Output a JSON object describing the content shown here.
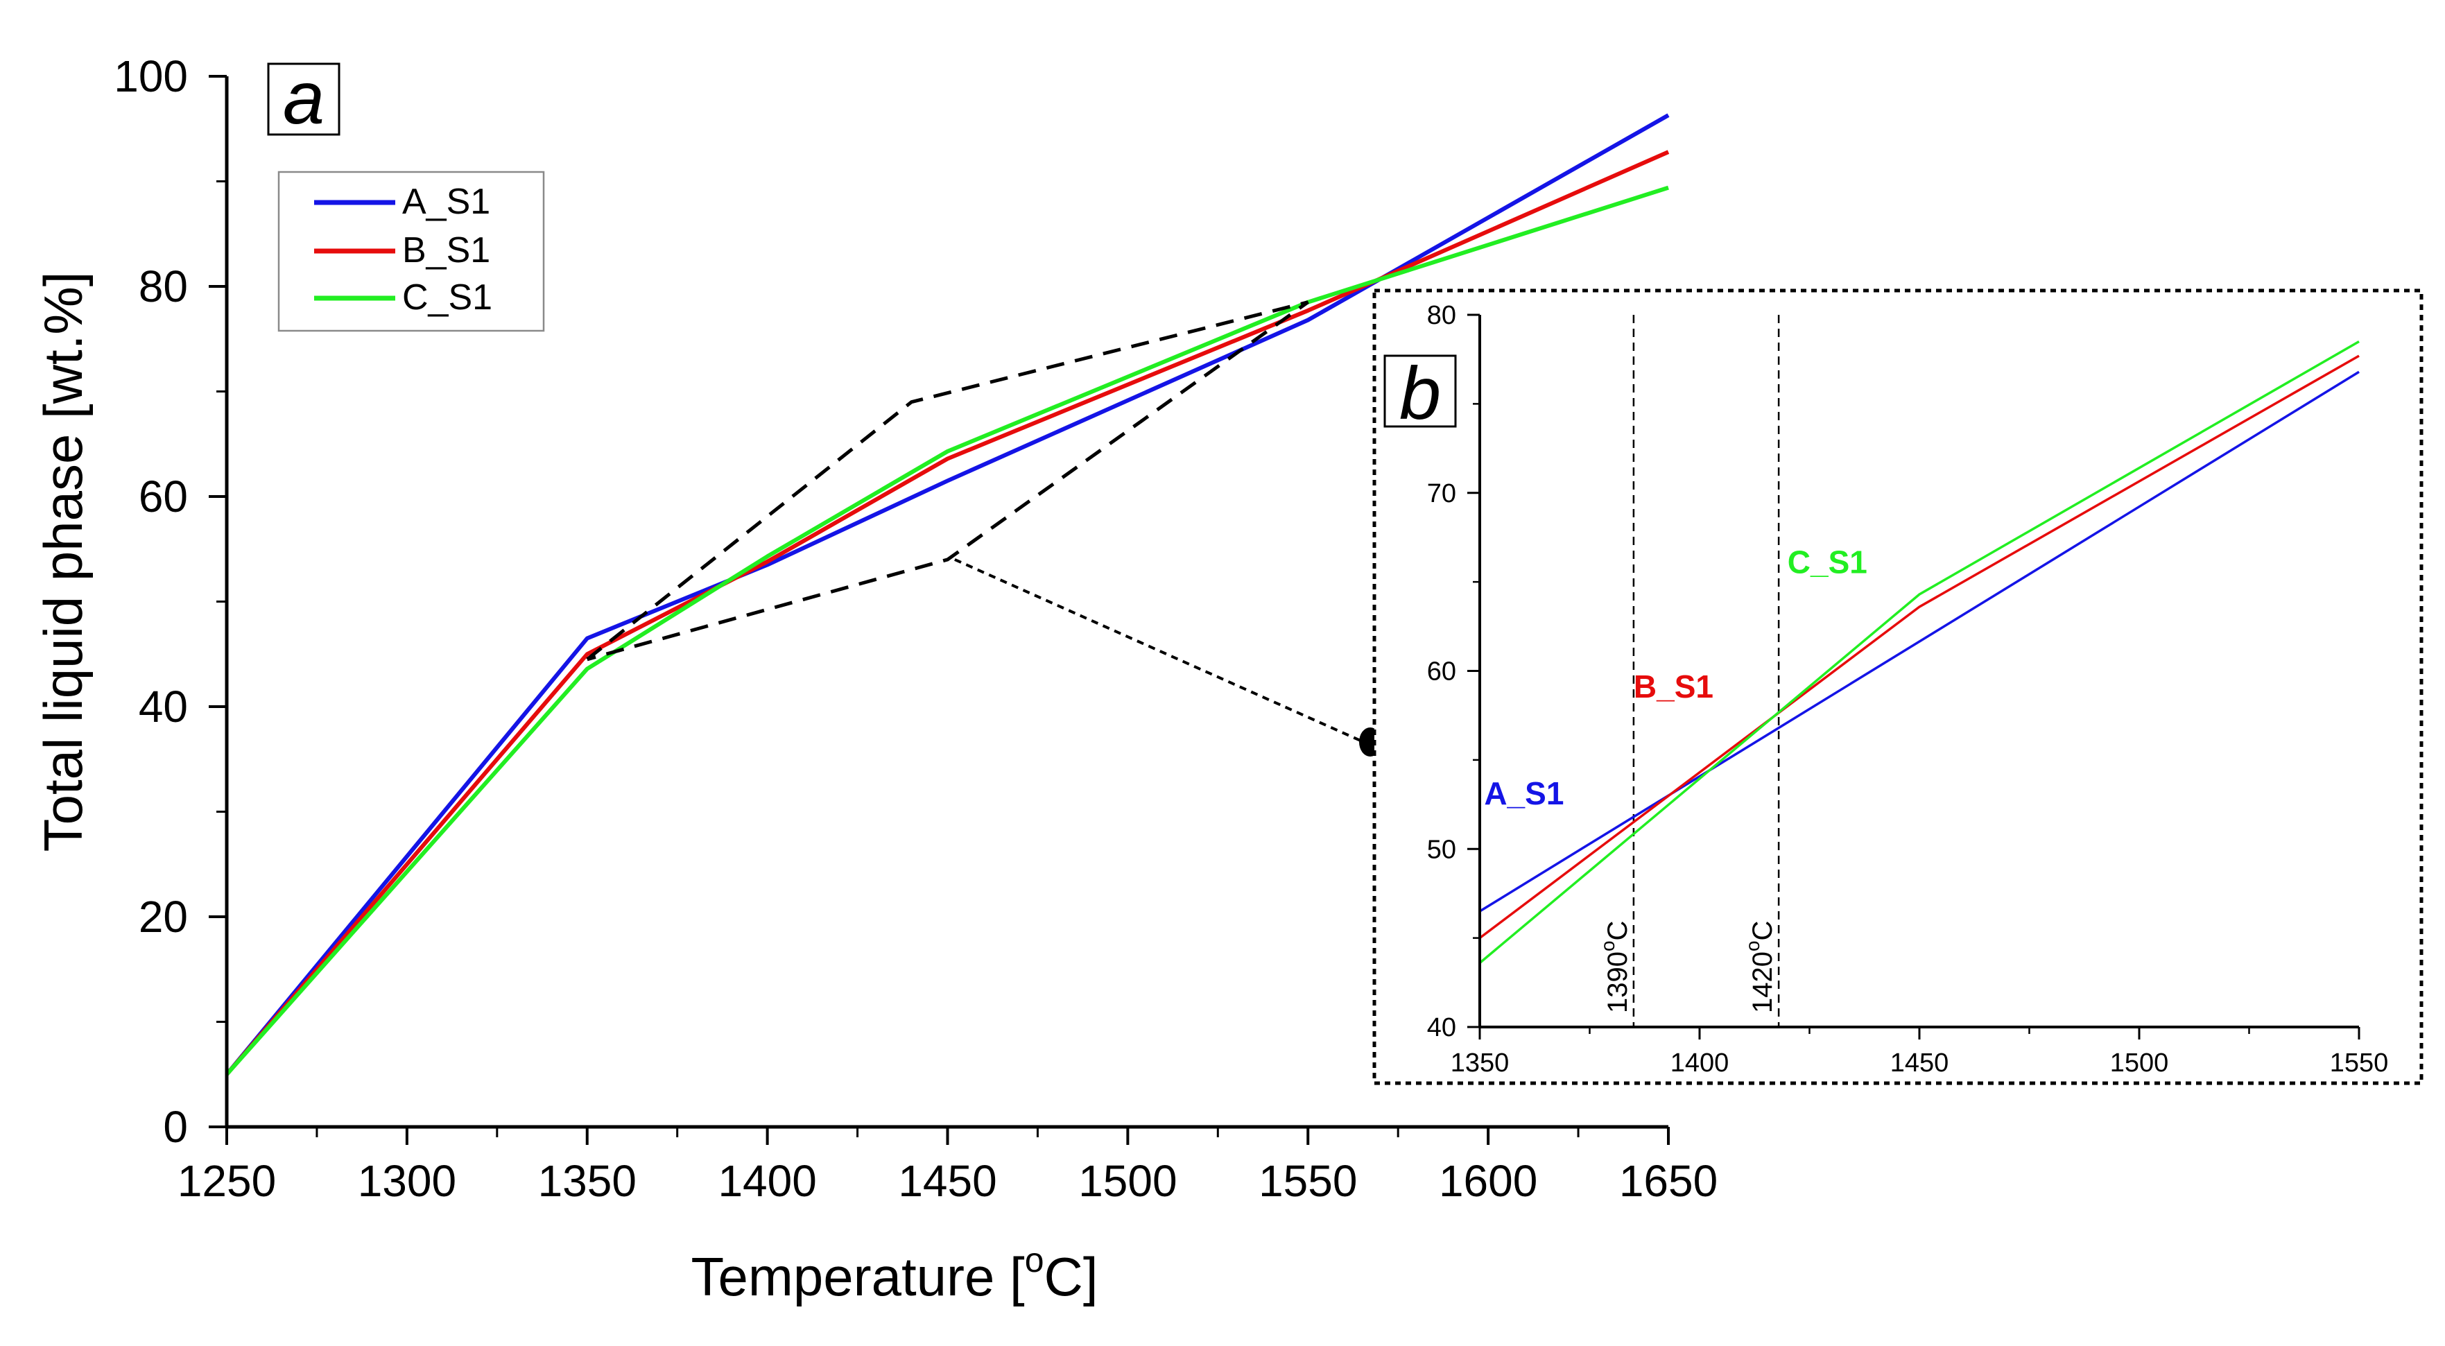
{
  "colors": {
    "A_S1": "#1414e6",
    "B_S1": "#e60c0c",
    "C_S1": "#22ee22",
    "axis": "#000000",
    "guide": "#000000"
  },
  "chart_data": [
    {
      "id": "main",
      "type": "line",
      "panel_label": "a",
      "xlabel": "Temperature [",
      "xlabel_sup": "o",
      "xlabel_end": "C]",
      "ylabel": "Total liquid phase [wt.%]",
      "xlim": [
        1250,
        1650
      ],
      "ylim": [
        0,
        100
      ],
      "xticks": [
        1250,
        1300,
        1350,
        1400,
        1450,
        1500,
        1550,
        1600,
        1650
      ],
      "xtick_labels": [
        "1250",
        "1300",
        "1350",
        "1400",
        "1450",
        "1500",
        "1550",
        "1600",
        "1650"
      ],
      "yticks": [
        0,
        20,
        40,
        60,
        80,
        100
      ],
      "ytick_labels": [
        "0",
        "20",
        "40",
        "60",
        "80",
        "100"
      ],
      "legend": [
        "A_S1",
        "B_S1",
        "C_S1"
      ],
      "series": [
        {
          "name": "A_S1",
          "x": [
            1250,
            1350,
            1400,
            1450,
            1550,
            1650
          ],
          "y": [
            5,
            46.5,
            53.5,
            61.5,
            76.8,
            96.3
          ]
        },
        {
          "name": "B_S1",
          "x": [
            1250,
            1350,
            1400,
            1450,
            1550,
            1650
          ],
          "y": [
            5,
            45,
            53.8,
            63.6,
            77.7,
            92.8
          ]
        },
        {
          "name": "C_S1",
          "x": [
            1250,
            1350,
            1400,
            1450,
            1550,
            1650
          ],
          "y": [
            5,
            43.6,
            54.3,
            64.3,
            78.5,
            89.4
          ]
        }
      ],
      "zoom_region": {
        "x": [
          1350,
          1440,
          1550,
          1450,
          1350
        ],
        "y": [
          44.5,
          69,
          78.5,
          54,
          44.5
        ]
      },
      "connector_from": {
        "x": 1452,
        "y": 54
      }
    },
    {
      "id": "inset",
      "type": "line",
      "panel_label": "b",
      "xlim": [
        1350,
        1550
      ],
      "ylim": [
        40,
        80
      ],
      "xticks": [
        1350,
        1400,
        1450,
        1500,
        1550
      ],
      "xtick_labels": [
        "1350",
        "1400",
        "1450",
        "1500",
        "1550"
      ],
      "yticks": [
        40,
        50,
        60,
        70,
        80
      ],
      "ytick_labels": [
        "40",
        "50",
        "60",
        "70",
        "80"
      ],
      "series": [
        {
          "name": "A_S1",
          "x": [
            1350,
            1550
          ],
          "y": [
            46.5,
            76.8
          ]
        },
        {
          "name": "B_S1",
          "x": [
            1350,
            1450,
            1550
          ],
          "y": [
            45,
            63.6,
            77.7
          ]
        },
        {
          "name": "C_S1",
          "x": [
            1350,
            1450,
            1550
          ],
          "y": [
            43.6,
            64.3,
            78.5
          ]
        }
      ],
      "series_labels": [
        {
          "name": "A_S1",
          "text": "A_S1",
          "x": 1351,
          "y": 52.5
        },
        {
          "name": "B_S1",
          "text": "B_S1",
          "x": 1385,
          "y": 58.5
        },
        {
          "name": "C_S1",
          "text": "C_S1",
          "x": 1420,
          "y": 65.5
        }
      ],
      "vlines": [
        {
          "x": 1385,
          "label": "1390",
          "sup": "o",
          "unit": "C"
        },
        {
          "x": 1418,
          "label": "1420",
          "sup": "o",
          "unit": "C"
        }
      ]
    }
  ]
}
